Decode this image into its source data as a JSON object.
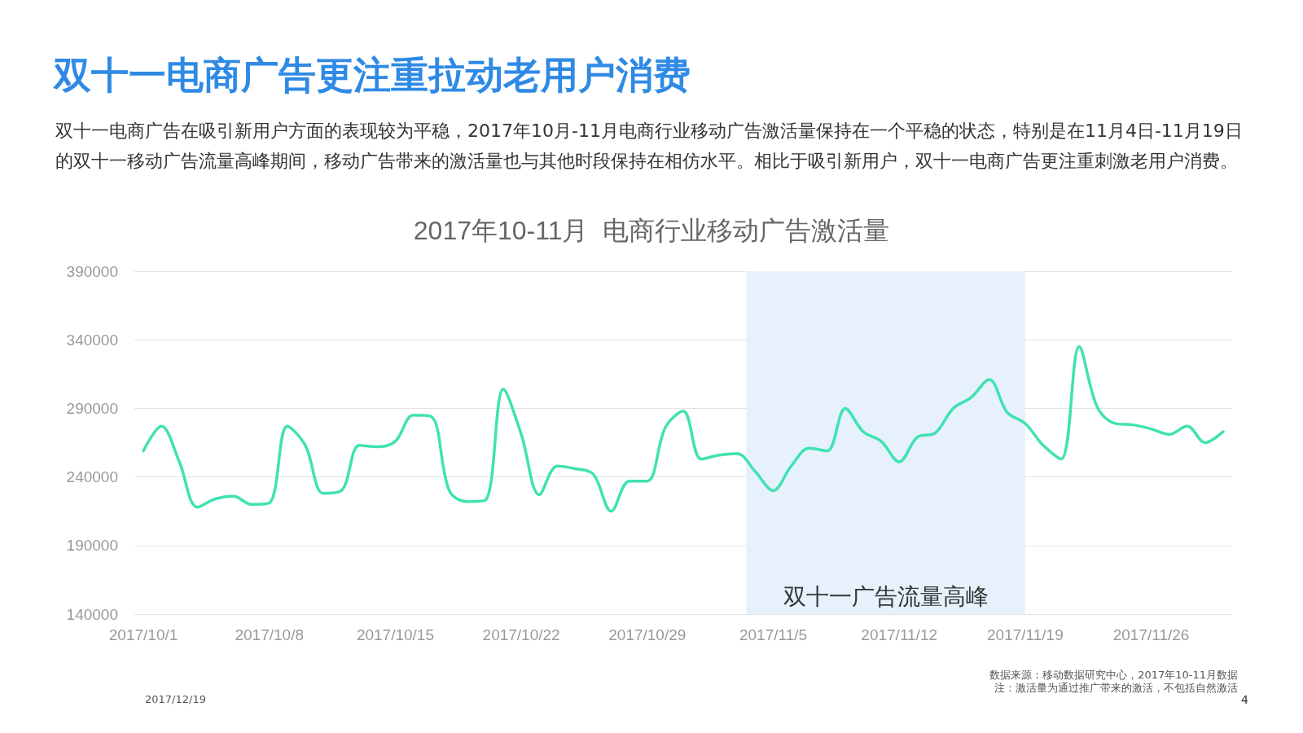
{
  "chart_data": {
    "type": "line",
    "title": "双十一电商广告更注重拉动老用户消费",
    "subtitle": "双十一电商广告在吸引新用户方面的表现较为平稳，2017年10月-11月电商行业移动广告激活量保持在一个平稳的状态，特别是在11月4日-11月19日的双十一移动广告流量高峰期间，移动广告带来的激活量也与其他时段保持在相仿水平。相比于吸引新用户，双十一电商广告更注重刺激老用户消费。",
    "annotations": [
      "2017年10-11月  电商行业移动广告激活量",
      "数据来源：移动数据研究中心，2017年10-11月数据",
      "注：激活量为通过推广带来的激活，不包括自然激活",
      "2017/12/19",
      "4"
    ],
    "x": [
      "2017-10-01",
      "2017-10-02",
      "2017-10-03",
      "2017-10-04",
      "2017-10-05",
      "2017-10-06",
      "2017-10-07",
      "2017-10-08",
      "2017-10-09",
      "2017-10-10",
      "2017-10-11",
      "2017-10-12",
      "2017-10-13",
      "2017-10-14",
      "2017-10-15",
      "2017-10-16",
      "2017-10-17",
      "2017-10-18",
      "2017-10-19",
      "2017-10-20",
      "2017-10-21",
      "2017-10-22",
      "2017-10-23",
      "2017-10-24",
      "2017-10-25",
      "2017-10-26",
      "2017-10-27",
      "2017-10-28",
      "2017-10-29",
      "2017-10-30",
      "2017-10-31",
      "2017-11-01",
      "2017-11-02",
      "2017-11-03",
      "2017-11-04",
      "2017-11-05",
      "2017-11-06",
      "2017-11-07",
      "2017-11-08",
      "2017-11-09",
      "2017-11-10",
      "2017-11-11",
      "2017-11-12",
      "2017-11-13",
      "2017-11-14",
      "2017-11-15",
      "2017-11-16",
      "2017-11-17",
      "2017-11-18",
      "2017-11-19",
      "2017-11-20",
      "2017-11-21",
      "2017-11-22",
      "2017-11-23",
      "2017-11-24",
      "2017-11-25",
      "2017-11-26",
      "2017-11-27",
      "2017-11-28",
      "2017-11-29",
      "2017-11-30"
    ],
    "series": [
      {
        "color": "#40e2b2",
        "values": [
          259000,
          277000,
          251000,
          218000,
          224000,
          226000,
          220000,
          221000,
          277000,
          263000,
          228000,
          230000,
          263000,
          262000,
          266000,
          285000,
          284000,
          230000,
          222000,
          223000,
          304000,
          271000,
          227000,
          248000,
          246000,
          242000,
          215000,
          237000,
          237000,
          276000,
          288000,
          253000,
          256000,
          257000,
          244000,
          230000,
          248000,
          261000,
          259000,
          290000,
          273000,
          266000,
          251000,
          269000,
          272000,
          290000,
          298000,
          311000,
          287000,
          279000,
          263000,
          253000,
          335000,
          291000,
          279000,
          278000,
          275000,
          271000,
          277000,
          265000,
          273000
        ]
      }
    ],
    "xlim": [
      "2017-09-30T12:00",
      "2017-11-30T12:00"
    ],
    "xticks": [
      {
        "value": "2017-10-01",
        "label": "2017/10/1"
      },
      {
        "value": "2017-10-08",
        "label": "2017/10/8"
      },
      {
        "value": "2017-10-15",
        "label": "2017/10/15"
      },
      {
        "value": "2017-10-22",
        "label": "2017/10/22"
      },
      {
        "value": "2017-10-29",
        "label": "2017/10/29"
      },
      {
        "value": "2017-11-05",
        "label": "2017/11/5"
      },
      {
        "value": "2017-11-12",
        "label": "2017/11/12"
      },
      {
        "value": "2017-11-19",
        "label": "2017/11/19"
      },
      {
        "value": "2017-11-26",
        "label": "2017/11/26"
      }
    ],
    "ylim": [
      140000,
      390000
    ],
    "yticks": [
      140000,
      190000,
      240000,
      290000,
      340000,
      390000
    ],
    "grid": "y",
    "marker": "none",
    "line_style": "solid",
    "bands": [
      {
        "axis": "x",
        "from": "2017-11-03T12:00",
        "to": "2017-11-19T00:00",
        "label": "双十一广告流量高峰",
        "color": "#e6f1fc"
      }
    ]
  }
}
